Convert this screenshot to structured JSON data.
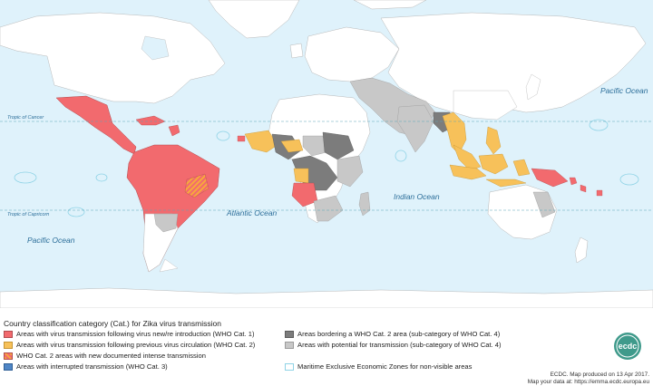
{
  "labels": {
    "pacific_ocean_ne": "Pacific Ocean",
    "pacific_ocean_sw": "Pacific Ocean",
    "atlantic_ocean": "Atlantic Ocean",
    "indian_ocean": "Indian Ocean",
    "tropic_of_cancer": "Tropic of Cancer",
    "tropic_of_capricorn": "Tropic of Capricorn"
  },
  "legend": {
    "title": "Country classification category (Cat.) for Zika virus transmission",
    "items": [
      {
        "label": "Areas with virus transmission following virus new/re introduction (WHO Cat. 1)",
        "color": "#f26a6e"
      },
      {
        "label": "Areas with virus transmission following previous virus circulation (WHO Cat. 2)",
        "color": "#f7c15a"
      },
      {
        "label": "WHO Cat. 2 areas with new documented intense transmission",
        "color": "#f7a93b"
      },
      {
        "label": "Areas with interrupted transmission (WHO Cat. 3)",
        "color": "#4f86c6"
      },
      {
        "label": "Areas bordering a WHO Cat. 2 area (sub-category of WHO Cat. 4)",
        "color": "#7c7c7c"
      },
      {
        "label": "Areas with potential for transmission (sub-category of WHO Cat. 4)",
        "color": "#c8c8c8"
      },
      {
        "label": "Maritime Exclusive Economic Zones for non-visible areas",
        "color": "#8fd3e6"
      }
    ]
  },
  "credit": {
    "line1": "ECDC. Map produced on 13 Apr 2017.",
    "line2": "Map your data at: https://emma.ecdc.europa.eu"
  },
  "logo": {
    "text": "ecdc"
  },
  "colors": {
    "ocean": "#dff2fb",
    "land": "#ffffff",
    "cat1": "#f26a6e",
    "cat2": "#f7c15a",
    "cat4_border": "#7c7c7c",
    "cat4_potential": "#c8c8c8",
    "eez": "#8fd3e6"
  }
}
